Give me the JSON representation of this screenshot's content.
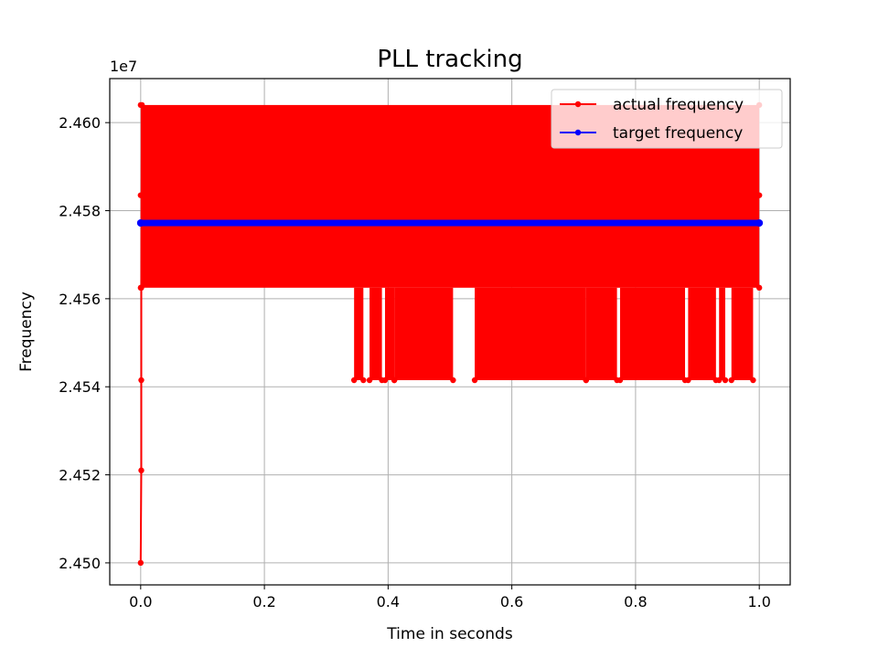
{
  "chart_data": {
    "type": "line",
    "title": "PLL tracking",
    "xlabel": "Time in seconds",
    "ylabel": "Frequency",
    "offset_text": "1e7",
    "xlim": [
      -0.05,
      1.05
    ],
    "ylim": [
      24.495,
      24.61
    ],
    "x_ticks": [
      0.0,
      0.2,
      0.4,
      0.6,
      0.8,
      1.0
    ],
    "x_tick_labels": [
      "0.0",
      "0.2",
      "0.4",
      "0.6",
      "0.8",
      "1.0"
    ],
    "y_ticks": [
      24.5,
      24.52,
      24.54,
      24.56,
      24.58,
      24.6
    ],
    "y_tick_labels": [
      "2.450",
      "2.452",
      "2.454",
      "2.456",
      "2.458",
      "2.460"
    ],
    "grid": true,
    "legend_position": "top-right",
    "legend": [
      "actual frequency",
      "target frequency"
    ],
    "series": [
      {
        "name": "actual frequency",
        "color": "#ff0000",
        "marker": "dot",
        "startup": {
          "x": [
            0.0,
            0.001,
            0.001,
            0.001,
            0.002
          ],
          "y": [
            24.5,
            24.521,
            24.5415,
            24.5625,
            24.604
          ]
        },
        "dense_band": {
          "x_range": [
            0.0,
            1.0
          ],
          "y_levels": [
            24.5625,
            24.5835,
            24.604
          ]
        },
        "dip_level": 24.5415,
        "dip_regions": [
          [
            0.345,
            0.36
          ],
          [
            0.37,
            0.39
          ],
          [
            0.395,
            0.41
          ],
          [
            0.41,
            0.505
          ],
          [
            0.54,
            0.72
          ],
          [
            0.72,
            0.77
          ],
          [
            0.775,
            0.88
          ],
          [
            0.885,
            0.93
          ],
          [
            0.935,
            0.945
          ],
          [
            0.955,
            0.99
          ]
        ]
      },
      {
        "name": "target frequency",
        "color": "#0000ff",
        "marker": "dot",
        "x": [
          0.0,
          1.0
        ],
        "y": [
          24.5772,
          24.5772
        ]
      }
    ]
  }
}
